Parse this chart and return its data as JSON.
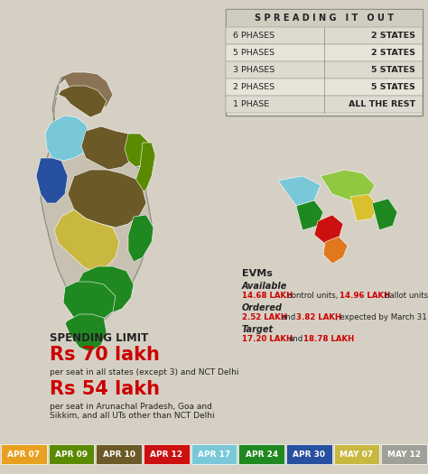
{
  "bg_color": "#d6d0c4",
  "title": "S P R E A D I N G   I T   O U T",
  "phases_table": [
    {
      "phase": "6 PHASES",
      "states": "2 STATES"
    },
    {
      "phase": "5 PHASES",
      "states": "2 STATES"
    },
    {
      "phase": "3 PHASES",
      "states": "5 STATES"
    },
    {
      "phase": "2 PHASES",
      "states": "5 STATES"
    },
    {
      "phase": "1 PHASE",
      "states": "ALL THE REST"
    }
  ],
  "evm_title": "EVMs",
  "evm_available_label": "Available",
  "evm_ordered_label": "Ordered",
  "evm_target_label": "Target",
  "spending_title": "SPENDING LIMIT",
  "spending_amount1": "Rs 70 lakh",
  "spending_desc1": "per seat in all states (except 3) and NCT Delhi",
  "spending_amount2": "Rs 54 lakh",
  "spending_desc2": "per seat in Arunachal Pradesh, Goa and\nSikkim, and all UTs other than NCT Delhi",
  "legend_items": [
    {
      "label": "APR 07",
      "color": "#e8a020"
    },
    {
      "label": "APR 09",
      "color": "#5a8a00"
    },
    {
      "label": "APR 10",
      "color": "#6b5a28"
    },
    {
      "label": "APR 12",
      "color": "#cc1010"
    },
    {
      "label": "APR 17",
      "color": "#78c8d8"
    },
    {
      "label": "APR 24",
      "color": "#208820"
    },
    {
      "label": "APR 30",
      "color": "#2850a0"
    },
    {
      "label": "MAY 07",
      "color": "#c8b840"
    },
    {
      "label": "MAY 12",
      "color": "#a0a098"
    }
  ],
  "map_placeholder_color": "#c8c0b0",
  "table_bg": "#e8e4d8",
  "table_border": "#888880",
  "red_color": "#cc0000",
  "dark_color": "#222222",
  "jk_color": "#8B7355",
  "ne_green": "#90c840",
  "ne_yellow": "#d8c030",
  "ne_red": "#cc1010",
  "ne_orange": "#e07820"
}
